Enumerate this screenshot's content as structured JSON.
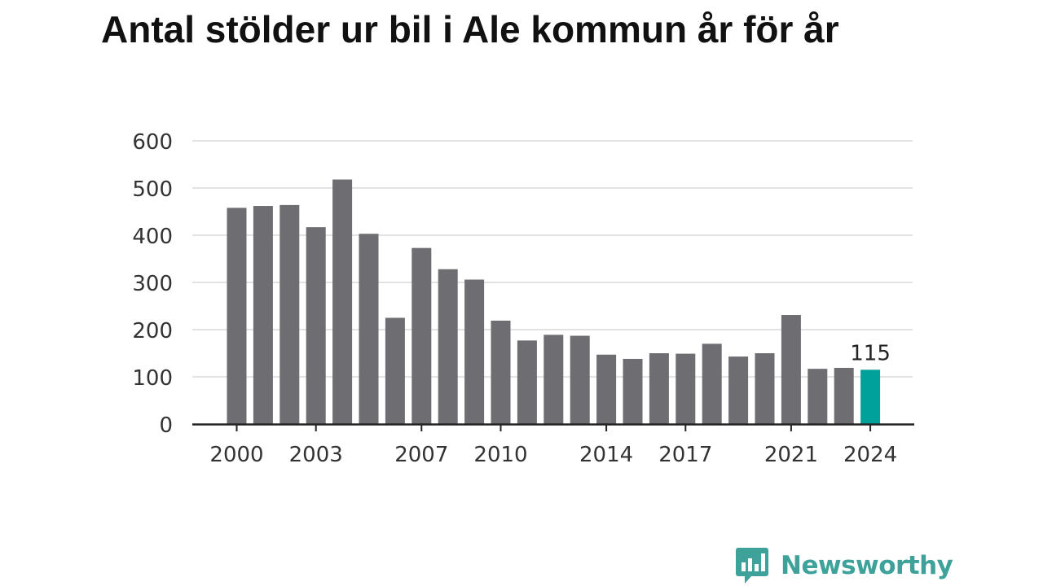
{
  "chart_data": {
    "type": "bar",
    "title": "Antal stölder ur bil i Ale kommun år för år",
    "xlabel": "",
    "ylabel": "",
    "categories": [
      2000,
      2001,
      2002,
      2003,
      2004,
      2005,
      2006,
      2007,
      2008,
      2009,
      2010,
      2011,
      2012,
      2013,
      2014,
      2015,
      2016,
      2017,
      2018,
      2019,
      2020,
      2021,
      2022,
      2023,
      2024
    ],
    "values": [
      458,
      462,
      464,
      417,
      518,
      403,
      225,
      373,
      328,
      306,
      219,
      177,
      189,
      187,
      147,
      138,
      150,
      149,
      170,
      143,
      150,
      231,
      117,
      119,
      115
    ],
    "ylim": [
      0,
      600
    ],
    "yticks": [
      0,
      100,
      200,
      300,
      400,
      500,
      600
    ],
    "xtick_labels": [
      "2000",
      "2003",
      "2007",
      "2010",
      "2014",
      "2017",
      "2021",
      "2024"
    ],
    "highlight": {
      "category": 2024,
      "label": "115"
    },
    "grid": true,
    "legend": "none"
  },
  "colors": {
    "bar": "#6e6d72",
    "highlight": "#00a19a",
    "grid": "#d9d9d9",
    "axis": "#222222",
    "logo": "#3ea29b"
  },
  "logo": {
    "text": "Newsworthy",
    "icon": "bar-chart-speech-bubble-icon"
  }
}
